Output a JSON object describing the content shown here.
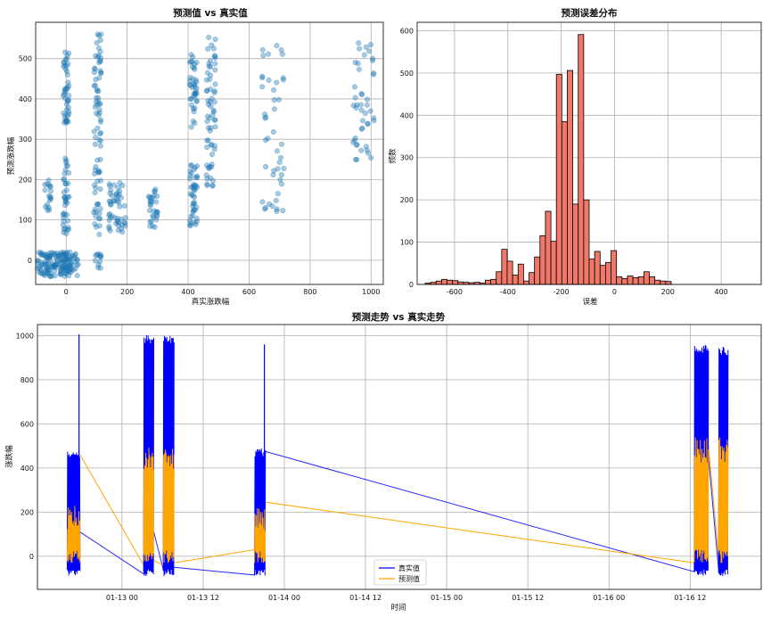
{
  "chart_data": [
    {
      "type": "scatter",
      "title": "预测值 vs 真实值",
      "xlabel": "真实涨跌幅",
      "ylabel": "预测涨跌幅",
      "xlim": [
        -100,
        1040
      ],
      "ylim": [
        -60,
        590
      ],
      "xticks": [
        0,
        200,
        400,
        600,
        800,
        1000
      ],
      "yticks": [
        0,
        100,
        200,
        300,
        400,
        500
      ],
      "grid": true,
      "color": "#1f77b4",
      "points_note_clusters": [
        {
          "x_range": [
            -95,
            40
          ],
          "y_range": [
            -40,
            20
          ],
          "n": 160
        },
        {
          "x_range": [
            -70,
            -50
          ],
          "y_range": [
            120,
            200
          ],
          "n": 18
        },
        {
          "x_range": [
            -10,
            10
          ],
          "y_range": [
            60,
            260
          ],
          "n": 40
        },
        {
          "x_range": [
            -10,
            10
          ],
          "y_range": [
            340,
            520
          ],
          "n": 45
        },
        {
          "x_range": [
            90,
            115
          ],
          "y_range": [
            60,
            250
          ],
          "n": 30
        },
        {
          "x_range": [
            90,
            115
          ],
          "y_range": [
            280,
            570
          ],
          "n": 50
        },
        {
          "x_range": [
            95,
            115
          ],
          "y_range": [
            -20,
            20
          ],
          "n": 12
        },
        {
          "x_range": [
            140,
            200
          ],
          "y_range": [
            70,
            200
          ],
          "n": 50
        },
        {
          "x_range": [
            270,
            300
          ],
          "y_range": [
            80,
            180
          ],
          "n": 30
        },
        {
          "x_range": [
            405,
            430
          ],
          "y_range": [
            80,
            240
          ],
          "n": 45
        },
        {
          "x_range": [
            405,
            430
          ],
          "y_range": [
            330,
            520
          ],
          "n": 40
        },
        {
          "x_range": [
            460,
            490
          ],
          "y_range": [
            180,
            240
          ],
          "n": 14
        },
        {
          "x_range": [
            460,
            490
          ],
          "y_range": [
            260,
            565
          ],
          "n": 50
        },
        {
          "x_range": [
            640,
            720
          ],
          "y_range": [
            120,
            545
          ],
          "n": 45
        },
        {
          "x_range": [
            940,
            1010
          ],
          "y_range": [
            240,
            540
          ],
          "n": 45
        }
      ]
    },
    {
      "type": "bar",
      "title": "预测误差分布",
      "xlabel": "误差",
      "ylabel": "频数",
      "xlim": [
        -740,
        550
      ],
      "ylim": [
        0,
        620
      ],
      "xticks": [
        -600,
        -400,
        -200,
        0,
        200,
        400
      ],
      "yticks": [
        0,
        100,
        200,
        300,
        400,
        500,
        600
      ],
      "grid": true,
      "color": "#f07869",
      "bin_edges_start": -710,
      "bin_width": 20.5,
      "counts": [
        3,
        5,
        8,
        12,
        10,
        9,
        6,
        5,
        4,
        5,
        3,
        10,
        12,
        30,
        83,
        55,
        22,
        48,
        8,
        28,
        65,
        115,
        173,
        102,
        497,
        385,
        506,
        190,
        591,
        200,
        60,
        78,
        45,
        52,
        80,
        18,
        14,
        20,
        16,
        18,
        30,
        18,
        10,
        8,
        7
      ]
    },
    {
      "type": "line",
      "title": "预测走势 vs 真实走势",
      "xlabel": "时间",
      "ylabel": "涨跌幅",
      "ylim": [
        -150,
        1050
      ],
      "xticks": [
        "01-13 00",
        "01-13 12",
        "01-14 00",
        "01-14 12",
        "01-15 00",
        "01-15 12",
        "01-16 00",
        "01-16 12"
      ],
      "yticks": [
        0,
        200,
        400,
        600,
        800,
        1000
      ],
      "grid": true,
      "legend_position": "lower-center",
      "series": [
        {
          "name": "真实值",
          "color": "#0000ff"
        },
        {
          "name": "预测值",
          "color": "#ffa500"
        }
      ],
      "segments": [
        {
          "start_h": -8.1,
          "end_h": -6.2,
          "real_range": [
            -90,
            490
          ],
          "pred_range": [
            -30,
            230
          ],
          "extra_real_peak": 1005
        },
        {
          "start_h": 3.2,
          "end_h": 4.7,
          "real_range": [
            -90,
            1005
          ],
          "pred_range": [
            -40,
            500
          ]
        },
        {
          "start_h": 6.1,
          "end_h": 7.7,
          "real_range": [
            -90,
            1005
          ],
          "pred_range": [
            -30,
            500
          ]
        },
        {
          "start_h": 19.6,
          "end_h": 21.2,
          "real_range": [
            -90,
            490
          ],
          "pred_range": [
            -30,
            230
          ],
          "extra_real_peak": 960
        },
        {
          "start_h": 84.6,
          "end_h": 86.7,
          "real_range": [
            -90,
            960
          ],
          "pred_range": [
            -30,
            540
          ]
        },
        {
          "start_h": 88.2,
          "end_h": 89.6,
          "real_range": [
            -90,
            950
          ],
          "pred_range": [
            -30,
            540
          ]
        }
      ],
      "connectors": {
        "real": [
          [
            -6.2,
            110
          ],
          [
            3.2,
            -80
          ],
          [
            4.7,
            110
          ],
          [
            6.1,
            -60
          ],
          [
            7.7,
            -50
          ],
          [
            19.6,
            -85
          ],
          [
            21.2,
            475
          ],
          [
            84.6,
            -70
          ],
          [
            86.7,
            450
          ],
          [
            88.2,
            -60
          ]
        ],
        "pred": [
          [
            -6.2,
            460
          ],
          [
            3.2,
            -40
          ],
          [
            4.7,
            -20
          ],
          [
            6.1,
            -40
          ],
          [
            7.7,
            -30
          ],
          [
            19.6,
            30
          ],
          [
            21.2,
            245
          ],
          [
            84.6,
            -30
          ],
          [
            86.7,
            500
          ],
          [
            88.2,
            0
          ]
        ]
      }
    }
  ]
}
